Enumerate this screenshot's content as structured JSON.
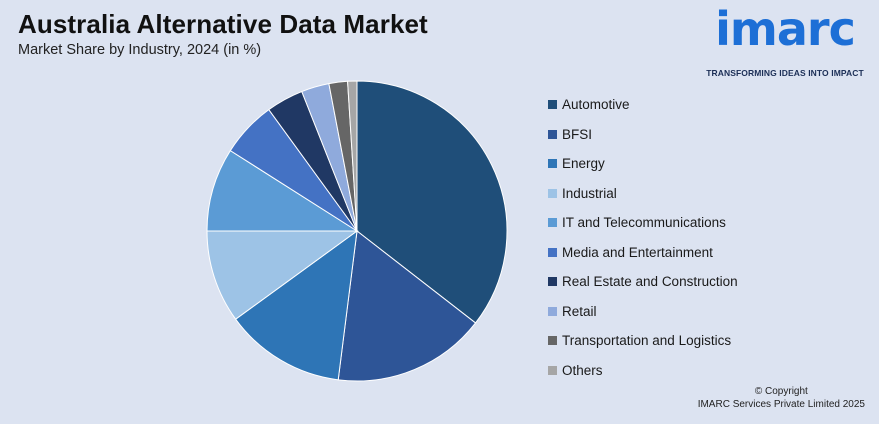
{
  "header": {
    "title": "Australia Alternative Data Market",
    "subtitle": "Market Share by Industry, 2024 (in %)"
  },
  "logo": {
    "wordmark": "imarc",
    "tagline": "TRANSFORMING IDEAS INTO IMPACT"
  },
  "copyright": {
    "line1": "© Copyright",
    "line2": "IMARC Services Private Limited 2025"
  },
  "chart_data": {
    "type": "pie",
    "title": "Australia Alternative Data Market",
    "subtitle": "Market Share by Industry, 2024 (in %)",
    "legend_position": "right",
    "start_angle": "12 o'clock",
    "direction": "clockwise",
    "labels": [
      "Automotive",
      "BFSI",
      "Energy",
      "Industrial",
      "IT and Telecommunications",
      "Media and Entertainment",
      "Real Estate and Construction",
      "Retail",
      "Transportation and Logistics",
      "Others"
    ],
    "values": [
      35.5,
      16.5,
      13.0,
      10.0,
      9.0,
      6.0,
      4.0,
      3.0,
      2.0,
      1.0
    ],
    "colors": [
      "#1f4e79",
      "#2e5597",
      "#2e75b6",
      "#9dc3e6",
      "#5b9bd5",
      "#4472c4",
      "#203864",
      "#8faadc",
      "#666666",
      "#a6a6a6"
    ]
  }
}
